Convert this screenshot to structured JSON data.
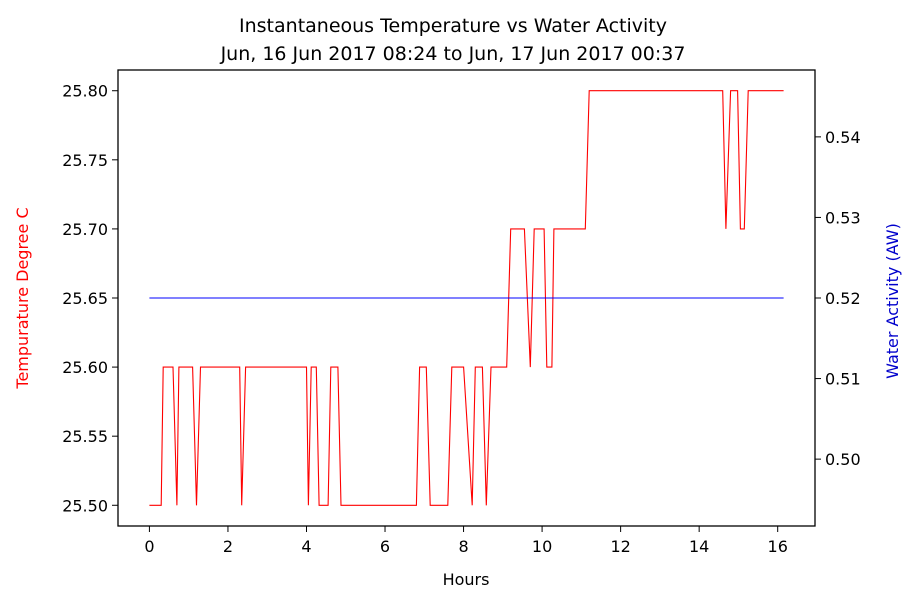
{
  "chart_data": {
    "type": "line",
    "title": "Instantaneous Temperature vs Water Activity",
    "subtitle": "Jun, 16 Jun 2017 08:24 to Jun, 17 Jun 2017 00:37",
    "xlabel": "Hours",
    "ylabel_left": "Tempurature Degree C",
    "ylabel_right": "Water Activity (AW)",
    "xlim": [
      -0.8,
      16.95
    ],
    "ylim_left": [
      25.485,
      25.815
    ],
    "ylim_right": [
      0.4917,
      0.5483
    ],
    "x_ticks": [
      0,
      2,
      4,
      6,
      8,
      10,
      12,
      14,
      16
    ],
    "y_left_ticks": [
      "25.50",
      "25.55",
      "25.60",
      "25.65",
      "25.70",
      "25.75",
      "25.80"
    ],
    "y_right_ticks": [
      "0.50",
      "0.51",
      "0.52",
      "0.53",
      "0.54"
    ],
    "colors": {
      "temperature": "#ff0000",
      "water_activity": "#0000ff",
      "left_axis_label": "#ff0000",
      "right_axis_label": "#0000cc"
    },
    "grid": false,
    "series": [
      {
        "axis": "left",
        "color": "#ff0000",
        "x": [
          0.0,
          0.3,
          0.35,
          0.6,
          0.7,
          0.75,
          1.1,
          1.2,
          1.3,
          2.3,
          2.35,
          2.45,
          4.0,
          4.05,
          4.12,
          4.25,
          4.32,
          4.55,
          4.62,
          4.8,
          4.88,
          6.8,
          6.88,
          7.05,
          7.15,
          7.6,
          7.7,
          8.0,
          8.22,
          8.3,
          8.48,
          8.58,
          8.7,
          9.1,
          9.2,
          9.55,
          9.7,
          9.8,
          10.05,
          10.12,
          10.25,
          10.3,
          11.1,
          11.2,
          14.6,
          14.68,
          14.8,
          14.98,
          15.05,
          15.15,
          15.25,
          16.15
        ],
        "y": [
          25.5,
          25.5,
          25.6,
          25.6,
          25.5,
          25.6,
          25.6,
          25.5,
          25.6,
          25.6,
          25.5,
          25.6,
          25.6,
          25.5,
          25.6,
          25.6,
          25.5,
          25.5,
          25.6,
          25.6,
          25.5,
          25.5,
          25.6,
          25.6,
          25.5,
          25.5,
          25.6,
          25.6,
          25.5,
          25.6,
          25.6,
          25.5,
          25.6,
          25.6,
          25.7,
          25.7,
          25.6,
          25.7,
          25.7,
          25.6,
          25.6,
          25.7,
          25.7,
          25.8,
          25.8,
          25.7,
          25.8,
          25.8,
          25.7,
          25.7,
          25.8,
          25.8
        ]
      },
      {
        "axis": "right",
        "color": "#0000ff",
        "x": [
          0.0,
          16.15
        ],
        "y": [
          0.52,
          0.52
        ]
      }
    ]
  }
}
